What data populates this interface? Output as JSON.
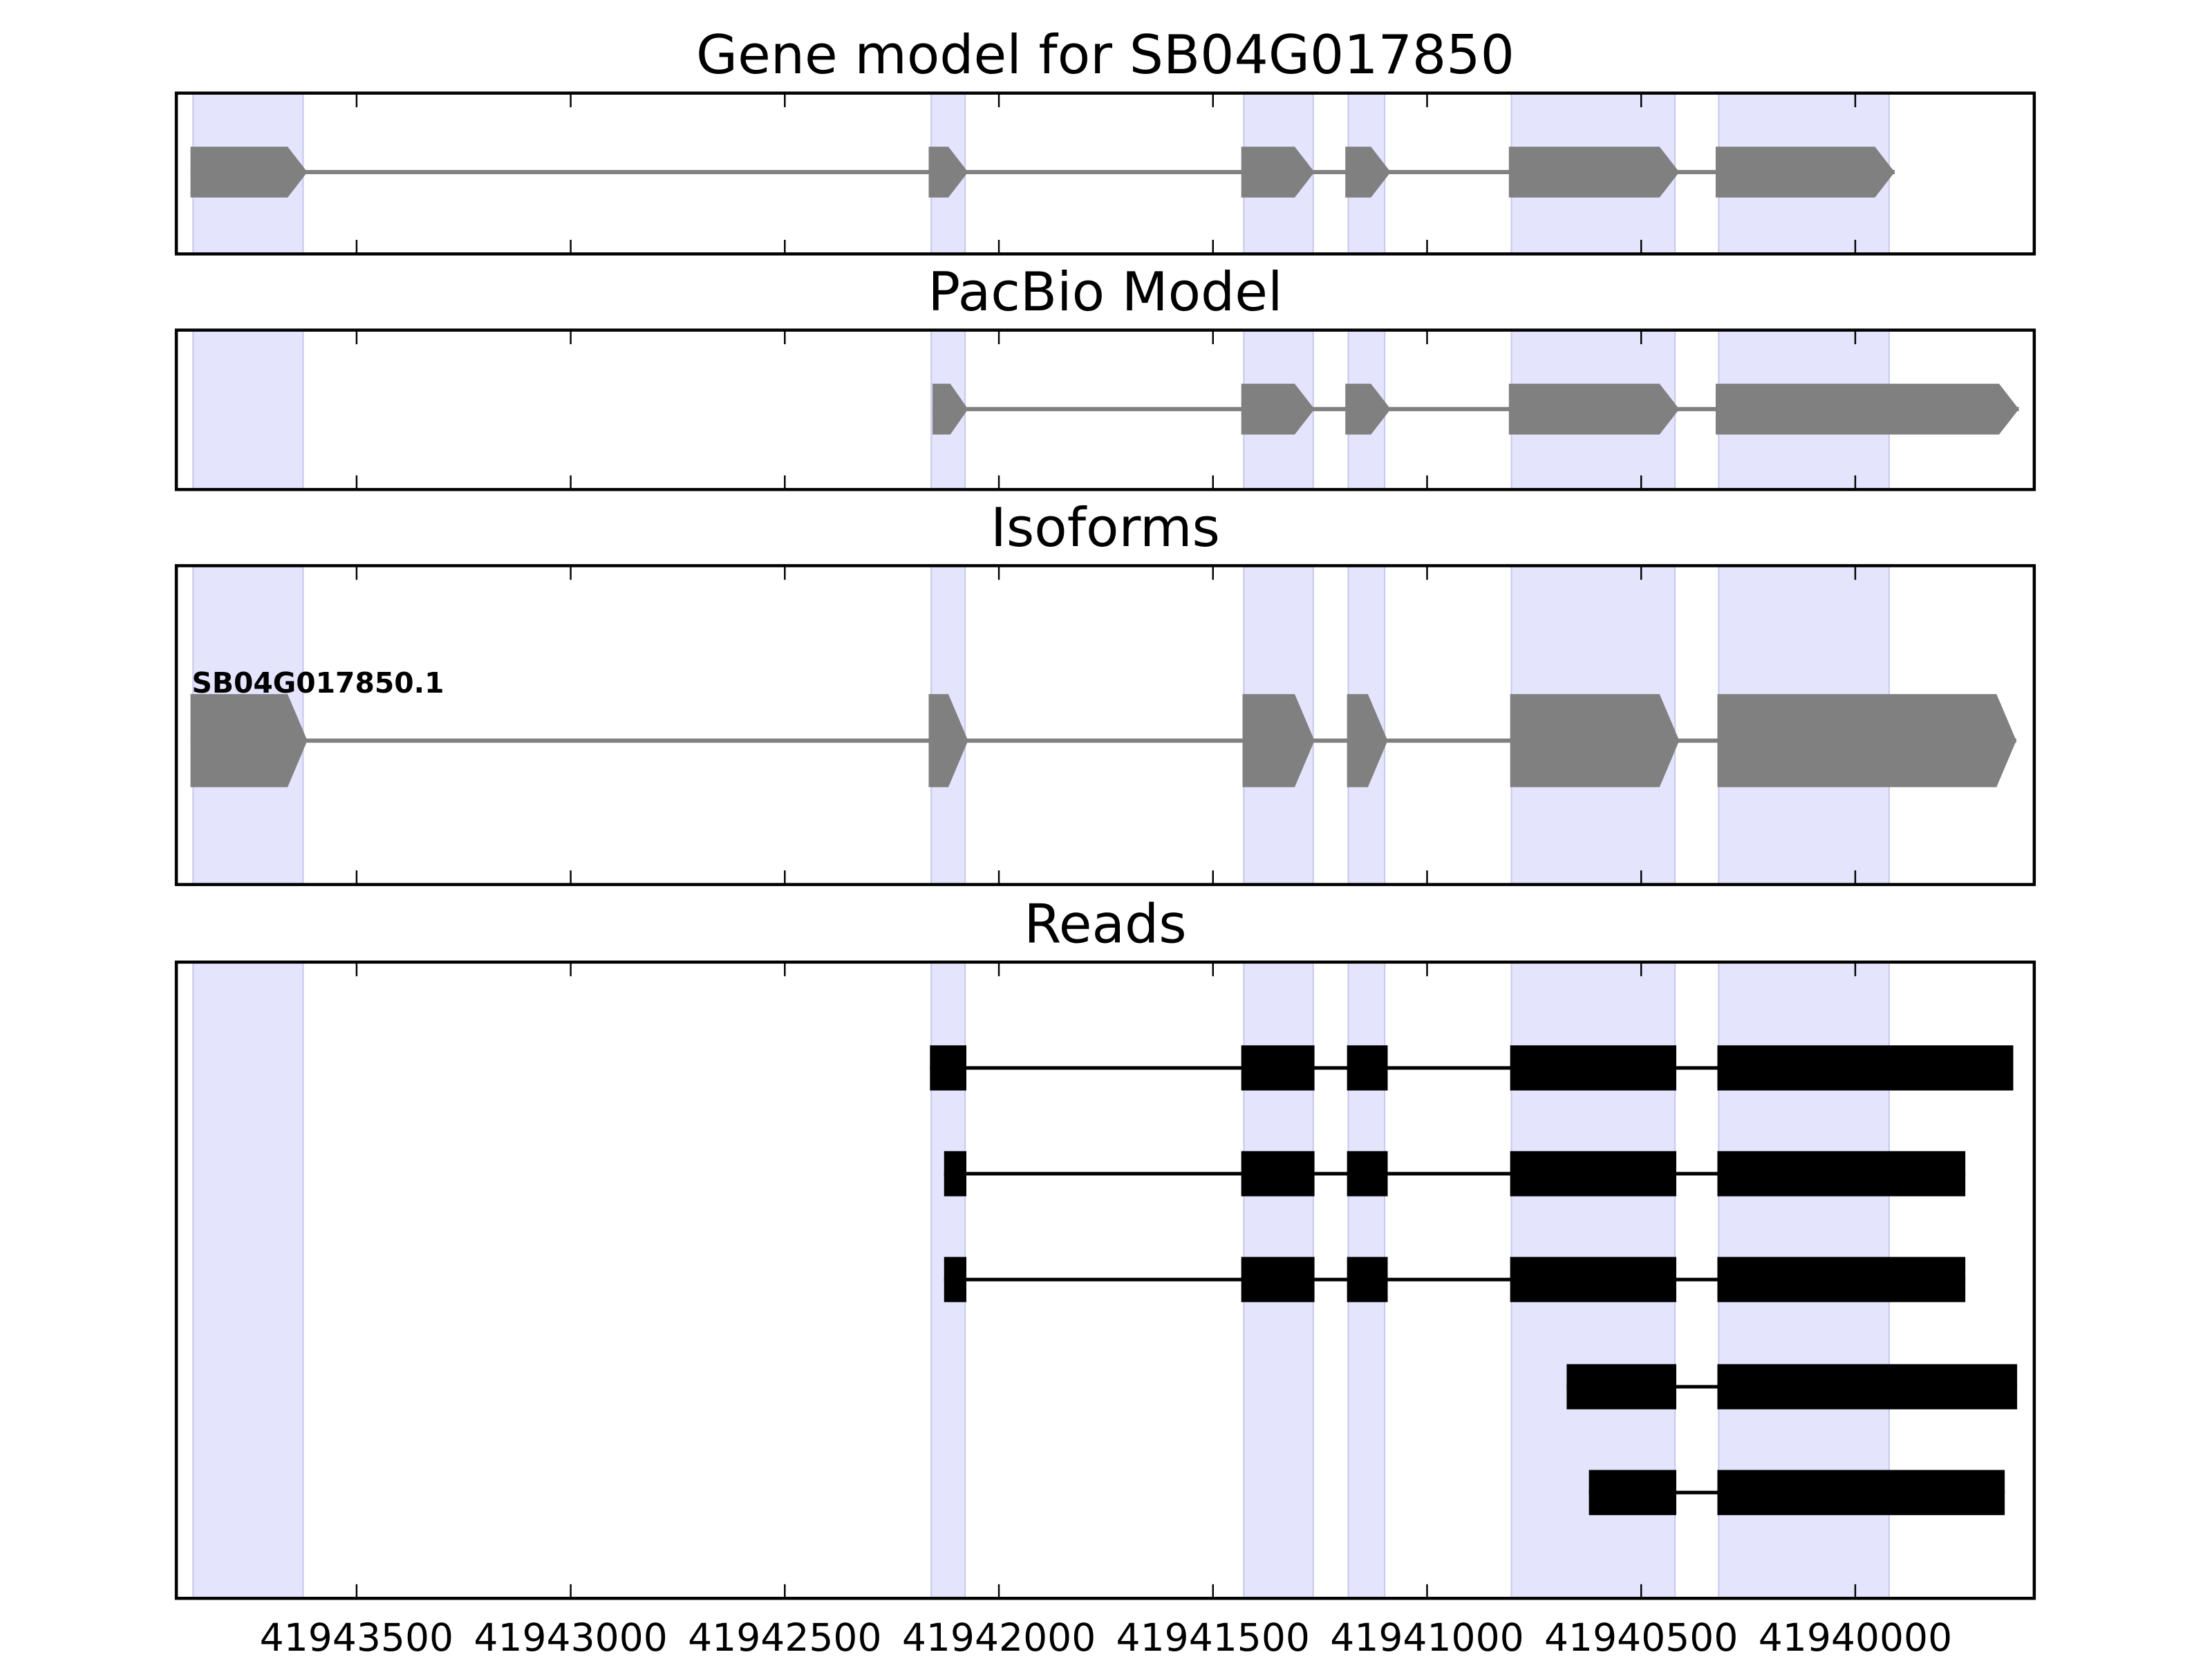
{
  "chart_data": {
    "type": "gene-track",
    "xlim": [
      41943921,
      41939582
    ],
    "x_reversed": true,
    "xticks": [
      41943500,
      41943000,
      41942500,
      41942000,
      41941500,
      41941000,
      41940500,
      41940000
    ],
    "xtick_labels": [
      "41943500",
      "41943000",
      "41942500",
      "41942000",
      "41941500",
      "41941000",
      "41940500",
      "41940000"
    ],
    "grid": false,
    "colors": {
      "shading": "#e4e4fc",
      "shading_edge": "#c8c8ec",
      "model": "#808080",
      "reads": "#000000"
    },
    "shaded_exons": [
      [
        41943882,
        41943625
      ],
      [
        41942158,
        41942079
      ],
      [
        41941428,
        41941266
      ],
      [
        41941184,
        41941099
      ],
      [
        41940803,
        41940421
      ],
      [
        41940319,
        41939921
      ]
    ],
    "panels": [
      {
        "title": "Gene model for SB04G017850",
        "style": "arrow",
        "tracks": [
          {
            "label": "",
            "exons": [
              [
                41943888,
                41943615
              ],
              [
                41942164,
                41942072
              ],
              [
                41941434,
                41941263
              ],
              [
                41941191,
                41941085
              ],
              [
                41940809,
                41940411
              ],
              [
                41940326,
                41939908
              ]
            ]
          }
        ]
      },
      {
        "title": "PacBio Model",
        "style": "arrow",
        "tracks": [
          {
            "label": "",
            "exons": [
              [
                41942155,
                41942072
              ],
              [
                41941434,
                41941263
              ],
              [
                41941191,
                41941085
              ],
              [
                41940809,
                41940411
              ],
              [
                41940326,
                41939618
              ]
            ]
          }
        ]
      },
      {
        "title": "Isoforms",
        "style": "arrow",
        "tracks": [
          {
            "label": "SB04G017850.1",
            "exons": [
              [
                41943888,
                41943615
              ],
              [
                41942164,
                41942072
              ],
              [
                41941431,
                41941263
              ],
              [
                41941187,
                41941092
              ],
              [
                41940806,
                41940411
              ],
              [
                41940322,
                41939624
              ]
            ]
          }
        ]
      },
      {
        "title": "Reads",
        "style": "block",
        "tracks": [
          {
            "label": "",
            "exons": [
              [
                41942161,
                41942076
              ],
              [
                41941434,
                41941263
              ],
              [
                41941187,
                41941092
              ],
              [
                41940806,
                41940418
              ],
              [
                41940322,
                41939631
              ]
            ]
          },
          {
            "label": "",
            "exons": [
              [
                41942128,
                41942076
              ],
              [
                41941434,
                41941263
              ],
              [
                41941187,
                41941092
              ],
              [
                41940806,
                41940418
              ],
              [
                41940322,
                41939743
              ]
            ]
          },
          {
            "label": "",
            "exons": [
              [
                41942128,
                41942076
              ],
              [
                41941434,
                41941263
              ],
              [
                41941187,
                41941092
              ],
              [
                41940806,
                41940418
              ],
              [
                41940322,
                41939743
              ]
            ]
          },
          {
            "label": "",
            "exons": [
              [
                41940674,
                41940418
              ],
              [
                41940322,
                41939622
              ]
            ]
          },
          {
            "label": "",
            "exons": [
              [
                41940622,
                41940418
              ],
              [
                41940322,
                41939651
              ]
            ]
          }
        ]
      }
    ]
  }
}
